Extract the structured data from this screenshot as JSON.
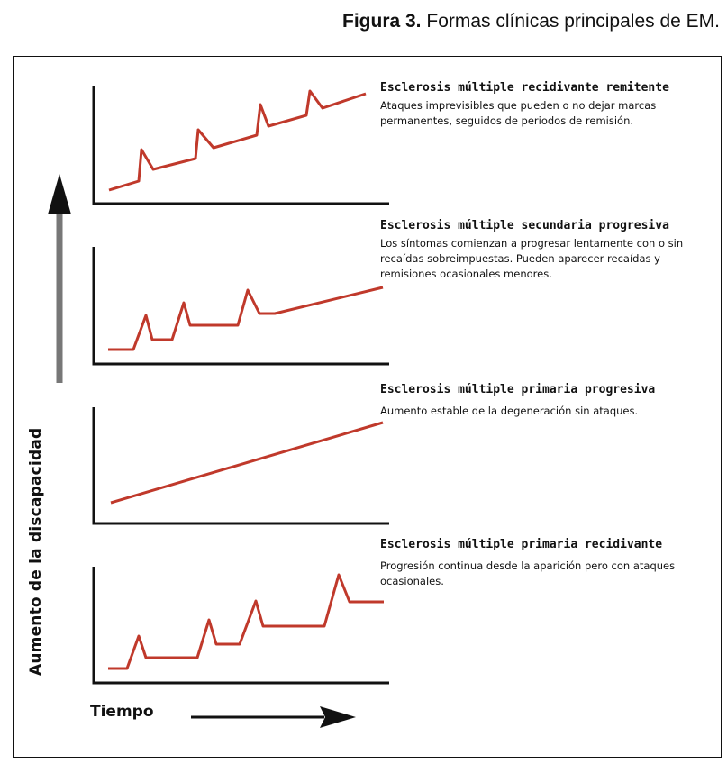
{
  "caption": {
    "number": "Figura 3.",
    "text": "Formas clínicas principales de EM."
  },
  "axes": {
    "y_label": "Aumento de la discapacidad",
    "x_label": "Tiempo"
  },
  "colors": {
    "curve": "#c0392b",
    "axis": "#111111",
    "arrow_shaft": "#777777"
  },
  "panels": [
    {
      "title": "Esclerosis múltiple recidivante remitente",
      "description": "Ataques imprevisibles que pueden o no dejar marcas permanentes, seguidos de periodos de remisión."
    },
    {
      "title": "Esclerosis múltiple secundaria progresiva",
      "description": "Los síntomas comienzan a progresar lentamente con o sin recaídas sobreimpuestas. Pueden aparecer recaídas y remisiones ocasionales menores."
    },
    {
      "title": "Esclerosis múltiple primaria progresiva",
      "description": "Aumento estable de la degeneración sin ataques."
    },
    {
      "title": "Esclerosis múltiple primaria recidivante",
      "description": "Progresión continua desde la aparición pero con ataques ocasionales."
    }
  ]
}
